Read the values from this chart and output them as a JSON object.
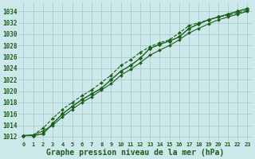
{
  "background_color": "#cde8ea",
  "grid_color": "#aacccc",
  "line_color": "#1a5e1a",
  "marker_color": "#1a5e1a",
  "xlabel": "Graphe pression niveau de la mer (hPa)",
  "xlabel_fontsize": 7,
  "ytick_values": [
    1012,
    1014,
    1016,
    1018,
    1020,
    1022,
    1024,
    1026,
    1028,
    1030,
    1032,
    1034
  ],
  "ylim": [
    1011.2,
    1035.5
  ],
  "xlim": [
    -0.5,
    23.5
  ],
  "series": [
    {
      "data": [
        1012.2,
        1012.2,
        1012.5,
        1014.3,
        1016.0,
        1017.3,
        1018.5,
        1019.5,
        1020.5,
        1022.0,
        1023.5,
        1024.5,
        1025.8,
        1027.5,
        1028.2,
        1028.8,
        1029.5,
        1031.0,
        1031.8,
        1032.5,
        1033.0,
        1033.5,
        1034.0,
        1034.5
      ],
      "linestyle": "-",
      "linewidth": 1.0,
      "marker": "D",
      "markersize": 2.5
    },
    {
      "data": [
        1012.2,
        1012.3,
        1013.5,
        1015.2,
        1016.8,
        1018.0,
        1019.2,
        1020.2,
        1021.5,
        1022.8,
        1024.5,
        1025.5,
        1026.8,
        1027.8,
        1028.5,
        1029.0,
        1030.2,
        1031.5,
        1032.0,
        1032.5,
        1033.0,
        1033.3,
        1033.7,
        1034.2
      ],
      "linestyle": "--",
      "linewidth": 0.8,
      "marker": "D",
      "markersize": 2.0
    },
    {
      "data": [
        1012.2,
        1012.3,
        1013.0,
        1014.0,
        1015.5,
        1016.8,
        1018.0,
        1019.0,
        1020.2,
        1021.3,
        1022.8,
        1023.8,
        1025.0,
        1026.3,
        1027.2,
        1028.0,
        1029.0,
        1030.2,
        1031.0,
        1031.8,
        1032.5,
        1033.0,
        1033.5,
        1034.0
      ],
      "linestyle": "-",
      "linewidth": 0.8,
      "marker": "D",
      "markersize": 2.0
    }
  ]
}
